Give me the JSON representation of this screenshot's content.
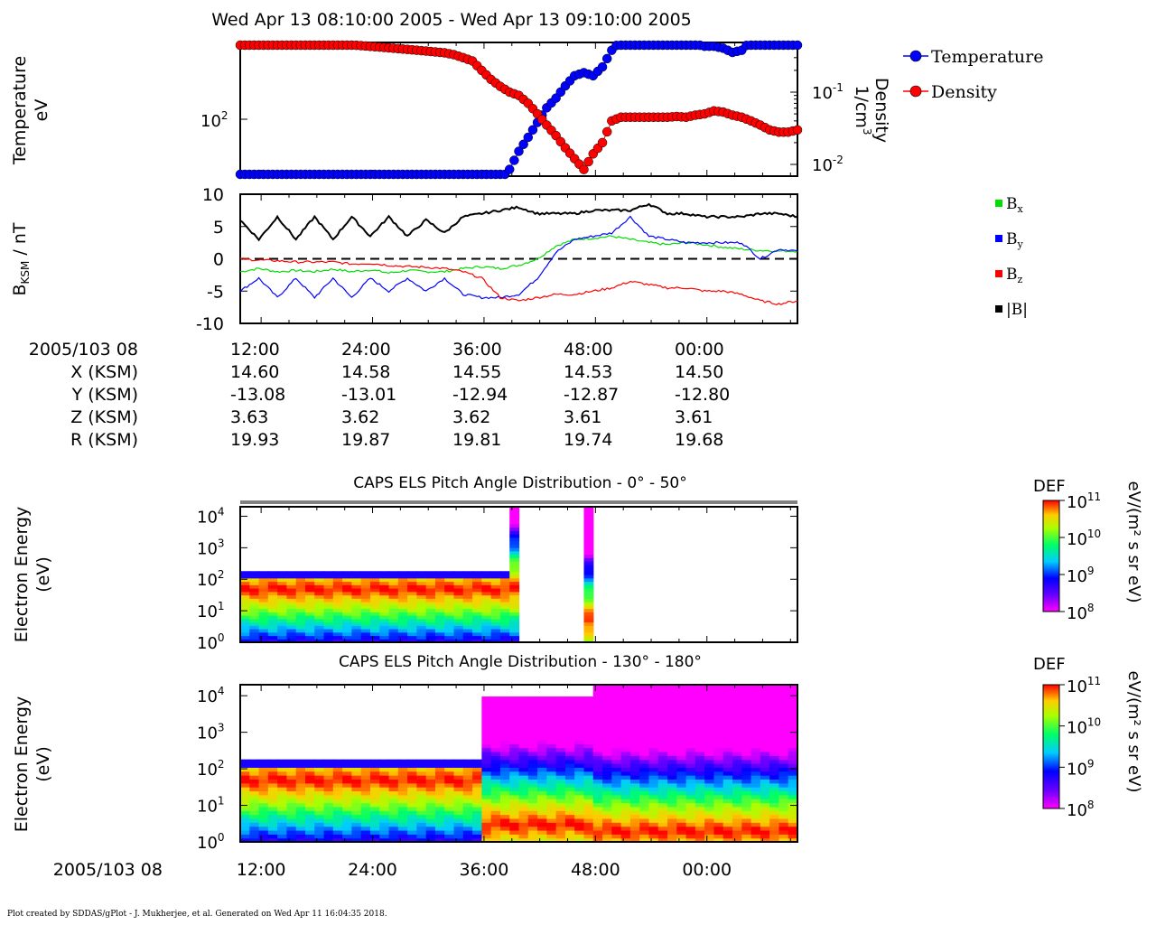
{
  "title": "Wed Apr 13 08:10:00 2005 - Wed Apr 13 09:10:00 2005",
  "footer": "Plot created by SDDAS/gPlot - J. Mukherjee, et al.  Generated on Wed Apr 11 16:04:35 2018.",
  "panel1": {
    "ylabel_left": [
      "Temperature",
      "eV"
    ],
    "ylabel_right": [
      "Density",
      "1/cm"
    ],
    "ylabel_right_sup": "3",
    "left_ticks": [
      {
        "base": "10",
        "exp": "2"
      }
    ],
    "right_ticks": [
      {
        "base": "10",
        "exp": "-1"
      },
      {
        "base": "10",
        "exp": "-2"
      }
    ],
    "legend": [
      {
        "label": "Temperature",
        "color": "#0000ff"
      },
      {
        "label": "Density",
        "color": "#ff0000"
      }
    ]
  },
  "panel2": {
    "ylabel": "B",
    "ylabel_sub": "KSM",
    "ylabel_suffix": " / nT",
    "yticks": [
      "10",
      "5",
      "0",
      "-5",
      "-10"
    ],
    "legend": [
      {
        "label": "B",
        "sub": "x",
        "color": "#00dd00"
      },
      {
        "label": "B",
        "sub": "y",
        "color": "#0000ff"
      },
      {
        "label": "B",
        "sub": "z",
        "color": "#ff0000"
      },
      {
        "label": "|B|",
        "sub": "",
        "color": "#000000"
      }
    ]
  },
  "ephemeris": {
    "rows": [
      "2005/103 08",
      "X (KSM)",
      "Y (KSM)",
      "Z (KSM)",
      "R (KSM)"
    ],
    "columns": [
      [
        "12:00",
        "14.60",
        "-13.08",
        "3.63",
        "19.93"
      ],
      [
        "24:00",
        "14.58",
        "-13.01",
        "3.62",
        "19.87"
      ],
      [
        "36:00",
        "14.55",
        "-12.94",
        "3.62",
        "19.81"
      ],
      [
        "48:00",
        "14.53",
        "-12.87",
        "3.61",
        "19.74"
      ],
      [
        "00:00",
        "14.50",
        "-12.80",
        "3.61",
        "19.68"
      ]
    ]
  },
  "spec1": {
    "title": "CAPS ELS Pitch Angle Distribution - 0° - 50°",
    "ylabel": [
      "Electron Energy",
      "(eV)"
    ],
    "cbar_title": "DEF",
    "cbar_units": "eV/(m² s sr eV)"
  },
  "spec2": {
    "title": "CAPS ELS Pitch Angle Distribution - 130° - 180°",
    "ylabel": [
      "Electron Energy",
      "(eV)"
    ],
    "cbar_title": "DEF",
    "cbar_units": "eV/(m² s sr eV)"
  },
  "energy_ticks": [
    {
      "base": "10",
      "exp": "4"
    },
    {
      "base": "10",
      "exp": "3"
    },
    {
      "base": "10",
      "exp": "2"
    },
    {
      "base": "10",
      "exp": "1"
    },
    {
      "base": "10",
      "exp": "0"
    }
  ],
  "cbar_ticks": [
    {
      "base": "10",
      "exp": "11"
    },
    {
      "base": "10",
      "exp": "10"
    },
    {
      "base": "10",
      "exp": "9"
    },
    {
      "base": "10",
      "exp": "8"
    }
  ],
  "bottom_axis": {
    "label": "2005/103 08",
    "ticks": [
      "12:00",
      "24:00",
      "36:00",
      "48:00",
      "00:00"
    ]
  },
  "chart_data": [
    {
      "type": "line",
      "x": [
        0,
        1,
        2,
        3,
        4,
        5,
        6,
        7,
        8,
        9,
        10,
        11,
        12,
        13,
        14,
        15,
        16,
        17,
        18,
        19,
        20,
        21,
        22,
        23,
        24,
        25,
        26,
        27,
        28,
        29,
        30,
        31,
        32,
        33,
        34,
        35,
        36,
        37,
        38,
        39,
        40,
        41,
        42,
        43,
        44,
        45,
        46,
        47,
        48,
        49,
        50,
        51,
        52,
        53,
        54,
        55,
        56,
        57,
        58,
        59,
        60
      ],
      "scale": "log",
      "series": [
        {
          "name": "Temperature",
          "color": "#0000ff",
          "values": [
            35,
            35,
            35,
            35,
            34,
            35,
            35,
            34,
            35,
            35,
            34,
            35,
            35,
            34,
            35,
            35,
            34,
            35,
            35,
            34,
            35,
            34,
            34,
            35,
            34,
            34,
            35,
            36,
            38,
            45,
            60,
            75,
            95,
            120,
            140,
            170,
            200,
            210,
            200,
            230,
            300,
            350,
            340,
            340,
            340,
            335,
            340,
            340,
            335,
            330,
            320,
            320,
            310,
            290,
            300,
            350,
            370,
            380,
            385,
            390,
            395
          ]
        },
        {
          "name": "Density",
          "color": "#ff0000",
          "values": [
            0.5,
            0.51,
            0.5,
            0.49,
            0.49,
            0.5,
            0.49,
            0.48,
            0.47,
            0.47,
            0.46,
            0.45,
            0.45,
            0.44,
            0.43,
            0.42,
            0.41,
            0.4,
            0.39,
            0.38,
            0.37,
            0.36,
            0.35,
            0.33,
            0.3,
            0.27,
            0.2,
            0.15,
            0.12,
            0.1,
            0.09,
            0.07,
            0.05,
            0.035,
            0.025,
            0.017,
            0.012,
            0.0085,
            0.014,
            0.02,
            0.04,
            0.045,
            0.045,
            0.045,
            0.045,
            0.045,
            0.045,
            0.046,
            0.045,
            0.048,
            0.05,
            0.055,
            0.053,
            0.048,
            0.045,
            0.04,
            0.035,
            0.03,
            0.028,
            0.028,
            0.03
          ]
        }
      ]
    },
    {
      "type": "line",
      "x": [
        0,
        2,
        4,
        6,
        8,
        10,
        12,
        14,
        16,
        18,
        20,
        22,
        24,
        26,
        28,
        30,
        32,
        34,
        36,
        38,
        40,
        42,
        44,
        46,
        48,
        50,
        52,
        54,
        56,
        58,
        60
      ],
      "ylim": [
        -10,
        10
      ],
      "series": [
        {
          "name": "B",
          "sub": "x",
          "color": "#00dd00",
          "values": [
            -2,
            -1.5,
            -2,
            -1.8,
            -2,
            -1.6,
            -2,
            -1.7,
            -2.2,
            -1.8,
            -2,
            -2,
            -1.5,
            -1.2,
            -1.5,
            -1,
            0,
            2,
            3,
            3.2,
            3.5,
            3,
            2.5,
            2.2,
            2.5,
            2.2,
            1.8,
            1.5,
            1.3,
            1.2,
            1.2
          ]
        },
        {
          "name": "B",
          "sub": "y",
          "color": "#0000ff",
          "values": [
            -5,
            -3,
            -6,
            -3,
            -6,
            -3,
            -6,
            -3,
            -5,
            -3,
            -5,
            -3,
            -5.5,
            -6,
            -6,
            -5.5,
            -3,
            1,
            3,
            3.5,
            4,
            6.5,
            3.5,
            3,
            2.5,
            2.5,
            2.5,
            2.5,
            0,
            1.5,
            1.2
          ]
        },
        {
          "name": "B",
          "sub": "z",
          "color": "#ff0000",
          "values": [
            0,
            -0.2,
            -0.3,
            -0.5,
            -0.5,
            -0.5,
            -0.8,
            -0.7,
            -1,
            -1.2,
            -1.3,
            -1.5,
            -2,
            -3,
            -6,
            -6.5,
            -6,
            -5.5,
            -5.5,
            -5,
            -4.5,
            -3.5,
            -4,
            -4.5,
            -4.5,
            -5,
            -5,
            -5.5,
            -6.5,
            -7,
            -6.5
          ]
        },
        {
          "name": "|B|",
          "sub": "",
          "color": "#000000",
          "values": [
            6,
            3,
            6.5,
            3,
            6.5,
            3,
            6.5,
            3.5,
            6.5,
            3.5,
            6,
            4,
            6.5,
            7,
            7.5,
            8,
            7,
            7,
            7,
            7.5,
            7.5,
            7.5,
            8.5,
            7,
            7,
            6.5,
            6.5,
            6.5,
            7,
            7,
            6.5
          ]
        }
      ]
    },
    {
      "type": "heatmap",
      "title": "CAPS ELS Pitch Angle Distribution - 0° - 50°",
      "x_columns": 60,
      "energy_range_eV": [
        1,
        20000
      ],
      "colorbar_range": [
        100000000.0,
        100000000000.0
      ],
      "segments": [
        {
          "x_start": 0,
          "x_end": 29,
          "peak_energy_eV": 50,
          "cutoff_energy_eV": 200
        },
        {
          "x_start": 29,
          "x_end": 30,
          "peak_energy_eV": 50,
          "cutoff_energy_eV": 20000
        },
        {
          "x_start": 37,
          "x_end": 38,
          "peak_energy_eV": 5,
          "cutoff_energy_eV": 20000
        }
      ]
    },
    {
      "type": "heatmap",
      "title": "CAPS ELS Pitch Angle Distribution - 130° - 180°",
      "x_columns": 60,
      "energy_range_eV": [
        1,
        20000
      ],
      "colorbar_range": [
        100000000.0,
        100000000000.0
      ],
      "segments": [
        {
          "x_start": 0,
          "x_end": 26,
          "peak_energy_eV": 50,
          "cutoff_energy_eV": 200
        },
        {
          "x_start": 26,
          "x_end": 38,
          "peak_energy_eV": 3,
          "cutoff_energy_eV": 10000
        },
        {
          "x_start": 38,
          "x_end": 60,
          "peak_energy_eV": 2,
          "cutoff_energy_eV": 20000
        }
      ]
    }
  ]
}
